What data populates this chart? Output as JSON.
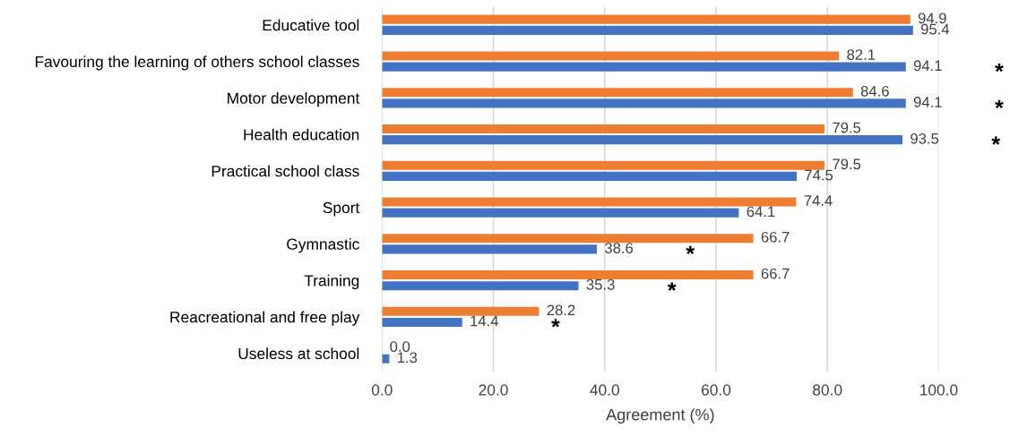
{
  "chart_data": {
    "type": "bar",
    "orientation": "horizontal",
    "xlabel": "Agreement (%)",
    "categories": [
      "Educative tool",
      "Favouring the learning of others school classes",
      "Motor development",
      "Health education",
      "Practical school class",
      "Sport",
      "Gymnastic",
      "Training",
      "Reacreational and free play",
      "Useless at school"
    ],
    "series": [
      {
        "color": "#ed7d31",
        "values": [
          94.9,
          82.1,
          84.6,
          79.5,
          79.5,
          74.4,
          66.7,
          66.7,
          28.2,
          0.0
        ],
        "value_labels": [
          "94.9",
          "82.1",
          "84.6",
          "79.5",
          "79.5",
          "74.4",
          "66.7",
          "66.7",
          "28.2",
          "0.0"
        ]
      },
      {
        "color": "#4472c4",
        "values": [
          95.4,
          94.1,
          94.1,
          93.5,
          74.5,
          64.1,
          38.6,
          35.3,
          14.4,
          1.3
        ],
        "value_labels": [
          "95.4",
          "94.1 *",
          "94.1 *",
          "93.5 *",
          "74.5",
          "64.1",
          "38.6 *",
          "35.3 *",
          "14.4 *",
          "1.3"
        ]
      }
    ],
    "xlim": [
      0,
      100
    ],
    "xticks": [
      {
        "value": 0,
        "label": "0.0"
      },
      {
        "value": 20,
        "label": "20.0"
      },
      {
        "value": 40,
        "label": "40.0"
      },
      {
        "value": 60,
        "label": "60.0"
      },
      {
        "value": 80,
        "label": "80.0"
      },
      {
        "value": 100,
        "label": "100.0"
      }
    ],
    "grid": "x",
    "legend": false
  }
}
